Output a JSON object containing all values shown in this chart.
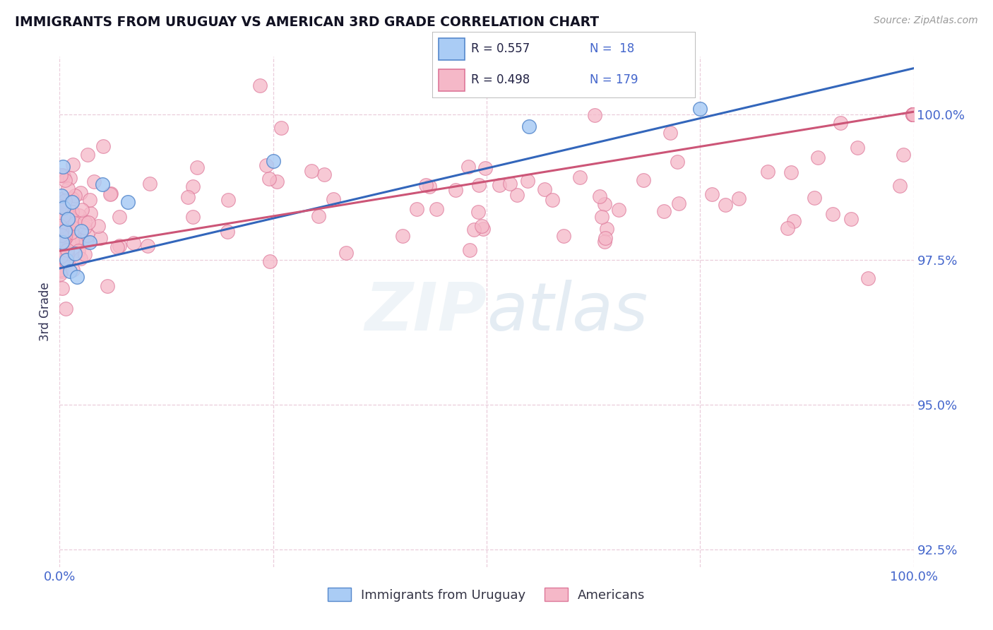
{
  "title": "IMMIGRANTS FROM URUGUAY VS AMERICAN 3RD GRADE CORRELATION CHART",
  "source_text": "Source: ZipAtlas.com",
  "ylabel": "3rd Grade",
  "xlim": [
    0.0,
    100.0
  ],
  "ylim": [
    92.2,
    101.0
  ],
  "yticks": [
    92.5,
    95.0,
    97.5,
    100.0
  ],
  "ytick_labels": [
    "92.5%",
    "95.0%",
    "97.5%",
    "100.0%"
  ],
  "xticks": [
    0.0,
    25.0,
    50.0,
    75.0,
    100.0
  ],
  "xtick_labels": [
    "0.0%",
    "",
    "",
    "",
    "100.0%"
  ],
  "blue_R": 0.557,
  "blue_N": 18,
  "pink_R": 0.498,
  "pink_N": 179,
  "blue_color": "#aaccf5",
  "pink_color": "#f5b8c8",
  "blue_edge_color": "#5588cc",
  "pink_edge_color": "#dd7799",
  "blue_line_color": "#3366bb",
  "pink_line_color": "#cc5577",
  "legend_label_blue": "Immigrants from Uruguay",
  "legend_label_pink": "Americans",
  "watermark": "ZIPAtlas",
  "title_color": "#111122",
  "tick_color": "#4466cc",
  "grid_color": "#e8c8d8",
  "background_color": "#ffffff",
  "blue_trend_x0": 0.0,
  "blue_trend_y0": 97.35,
  "blue_trend_x1": 100.0,
  "blue_trend_y1": 100.8,
  "pink_trend_x0": 0.0,
  "pink_trend_y0": 97.65,
  "pink_trend_x1": 100.0,
  "pink_trend_y1": 100.05
}
